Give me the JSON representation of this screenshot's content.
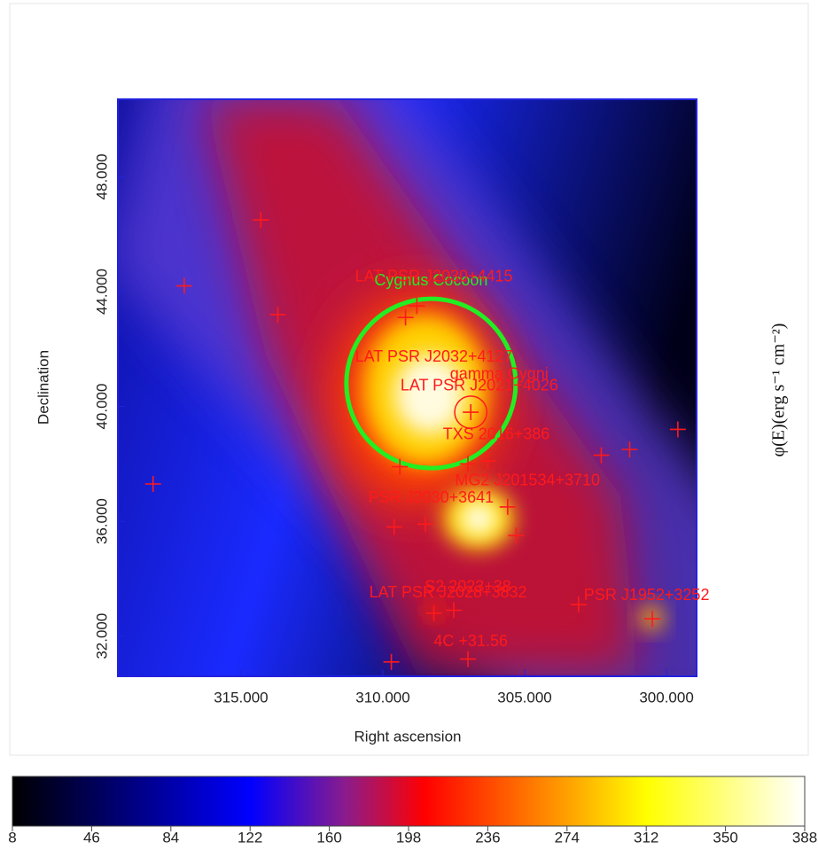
{
  "chart_data": {
    "type": "skymap",
    "xlabel": "Right ascension",
    "ylabel": "Declination",
    "colorbar_label": "φ(E)(erg s⁻¹ cm⁻²)",
    "xlim": [
      319.34,
      298.94
    ],
    "ylim": [
      30.6,
      50.7
    ],
    "xticks": [
      {
        "value": 315,
        "label": "315.000"
      },
      {
        "value": 310,
        "label": "310.000"
      },
      {
        "value": 305,
        "label": "305.000"
      },
      {
        "value": 300,
        "label": "300.000"
      }
    ],
    "yticks": [
      {
        "value": 32,
        "label": "32.000"
      },
      {
        "value": 36,
        "label": "36.000"
      },
      {
        "value": 40,
        "label": "40.000"
      },
      {
        "value": 44,
        "label": "44.000"
      },
      {
        "value": 48,
        "label": "48.000"
      }
    ],
    "clim": [
      8,
      388
    ],
    "cticks": [
      8,
      46,
      84,
      122,
      160,
      198,
      236,
      274,
      312,
      350,
      388
    ],
    "marker_color": "#ff1a1a",
    "sources": {
      "ra": [
        314.3,
        317.0,
        313.7,
        318.1,
        309.2,
        308.8,
        306.9,
        309.4,
        307.0,
        306.3,
        309.6,
        308.5,
        305.6,
        305.3,
        302.3,
        301.3,
        299.6,
        303.1,
        300.5,
        307.5,
        308.2,
        309.7,
        307.0
      ],
      "dec": [
        46.5,
        44.2,
        43.2,
        37.3,
        43.1,
        43.5,
        39.8,
        37.9,
        38.0,
        38.1,
        35.8,
        35.9,
        36.5,
        35.5,
        38.3,
        38.5,
        39.2,
        33.1,
        32.6,
        32.9,
        32.8,
        31.1,
        31.2
      ]
    },
    "annotations": [
      {
        "text": "LAT PSR J2030+4415",
        "ra": 308.2,
        "dec": 44.5
      },
      {
        "text": "LAT PSR J2032+4127",
        "ra": 308.2,
        "dec": 41.7
      },
      {
        "text": "gamma Cygni",
        "ra": 305.9,
        "dec": 41.1
      },
      {
        "text": "LAT PSR J2021+4026",
        "ra": 306.6,
        "dec": 40.7
      },
      {
        "text": "TXS 2016+386",
        "ra": 306.0,
        "dec": 39.0
      },
      {
        "text": "MG2 J201534+3710",
        "ra": 304.9,
        "dec": 37.4
      },
      {
        "text": "PSR J2030+3641",
        "ra": 308.3,
        "dec": 36.8
      },
      {
        "text": "S2 2023+38",
        "ra": 307.0,
        "dec": 33.7
      },
      {
        "text": "LAT PSR J2028+3832",
        "ra": 307.7,
        "dec": 33.5
      },
      {
        "text": "PSR J1952+3252",
        "ra": 300.7,
        "dec": 33.4
      },
      {
        "text": "4C +31.56",
        "ra": 306.9,
        "dec": 31.8
      }
    ],
    "regions": [
      {
        "name": "Cygnus Cocoon",
        "ra": 308.3,
        "dec": 40.8,
        "radius": 2.95,
        "color": "#22ee22"
      },
      {
        "ra": 306.9,
        "dec": 39.8,
        "radius": 0.56,
        "color": "#ff1a1a"
      }
    ]
  }
}
